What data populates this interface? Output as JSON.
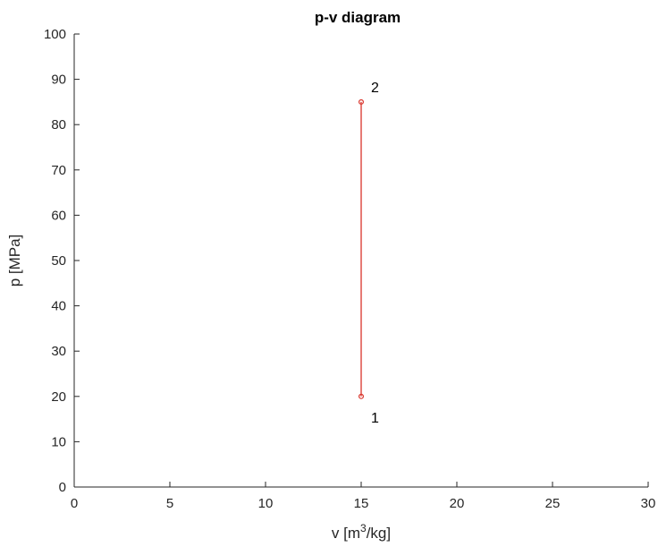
{
  "chart_data": {
    "type": "line",
    "title": "p-v diagram",
    "xlabel": {
      "prefix": "v [m",
      "superscript": "3",
      "suffix": "/kg]"
    },
    "ylabel": "p [MPa]",
    "xlim": [
      0,
      30
    ],
    "ylim": [
      0,
      100
    ],
    "xticks": [
      0,
      5,
      10,
      15,
      20,
      25,
      30
    ],
    "yticks": [
      0,
      10,
      20,
      30,
      40,
      50,
      60,
      70,
      80,
      90,
      100
    ],
    "grid": false,
    "series": [
      {
        "color": "#d9342b",
        "points": [
          {
            "x": 15,
            "y": 20,
            "label": "1"
          },
          {
            "x": 15,
            "y": 85,
            "label": "2"
          }
        ]
      }
    ]
  }
}
